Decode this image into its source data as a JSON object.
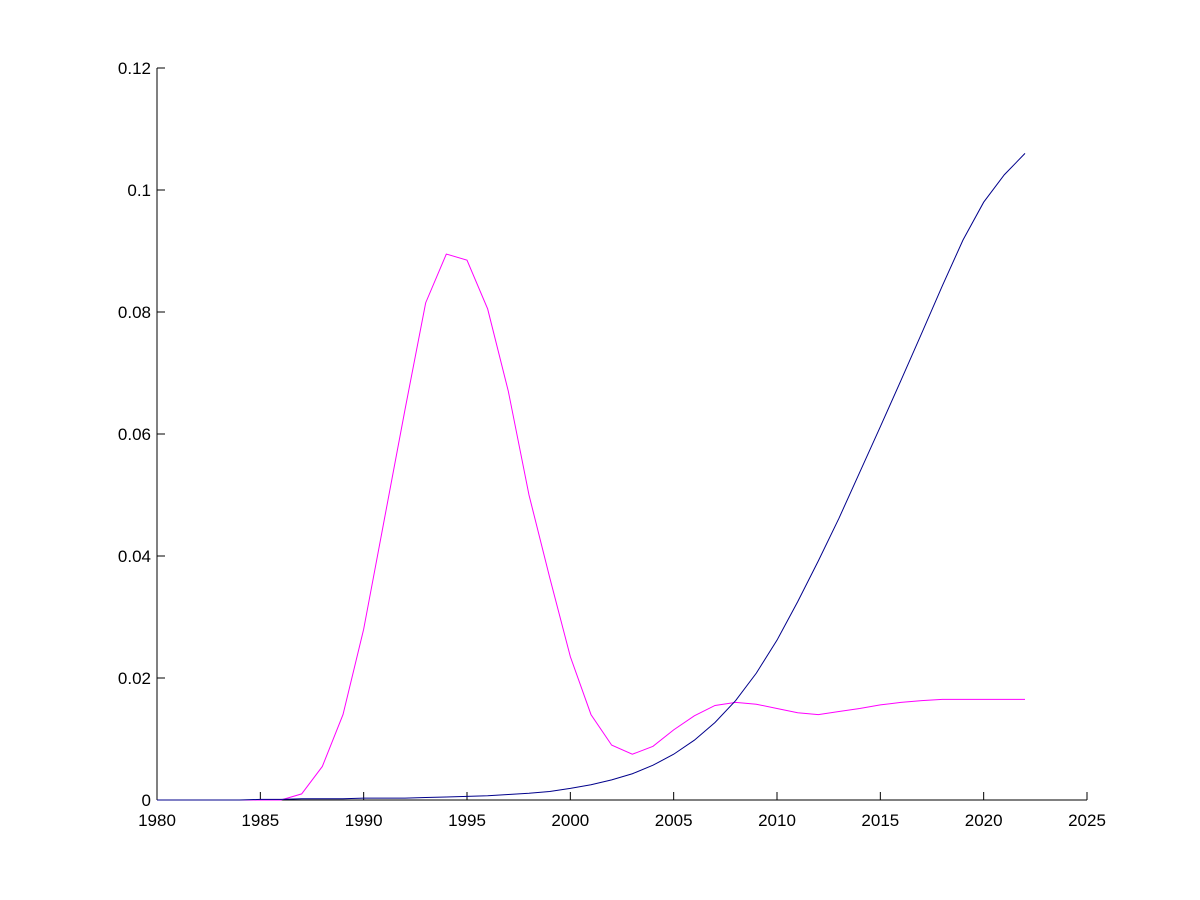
{
  "chart_data": {
    "type": "line",
    "x": [
      1980,
      1981,
      1982,
      1983,
      1984,
      1985,
      1986,
      1987,
      1988,
      1989,
      1990,
      1991,
      1992,
      1993,
      1994,
      1995,
      1996,
      1997,
      1998,
      1999,
      2000,
      2001,
      2002,
      2003,
      2004,
      2005,
      2006,
      2007,
      2008,
      2009,
      2010,
      2011,
      2012,
      2013,
      2014,
      2015,
      2016,
      2017,
      2018,
      2019,
      2020,
      2021,
      2022
    ],
    "series": [
      {
        "color": "#ff00ff",
        "values": [
          0,
          0,
          0,
          0,
          0,
          0,
          0,
          0.001,
          0.0055,
          0.014,
          0.028,
          0.046,
          0.064,
          0.0815,
          0.0895,
          0.0885,
          0.0805,
          0.067,
          0.05,
          0.0365,
          0.0235,
          0.014,
          0.009,
          0.0075,
          0.0088,
          0.0115,
          0.0138,
          0.0155,
          0.016,
          0.0157,
          0.015,
          0.0143,
          0.014,
          0.0145,
          0.015,
          0.0156,
          0.016,
          0.0163,
          0.0165,
          0.0165,
          0.0165,
          0.0165,
          0.0165
        ]
      },
      {
        "color": "#00008b",
        "values": [
          0,
          0,
          0,
          0,
          0,
          0.0001,
          0.0001,
          0.0002,
          0.0002,
          0.0002,
          0.0003,
          0.0003,
          0.0003,
          0.0004,
          0.0005,
          0.0006,
          0.0007,
          0.0009,
          0.0011,
          0.0014,
          0.0019,
          0.0025,
          0.0033,
          0.0043,
          0.0057,
          0.0075,
          0.0098,
          0.0127,
          0.0163,
          0.0208,
          0.0262,
          0.0325,
          0.0392,
          0.0462,
          0.0537,
          0.0612,
          0.0688,
          0.0765,
          0.0843,
          0.0918,
          0.098,
          0.1025,
          0.106
        ]
      }
    ],
    "xlim": [
      1980,
      2025
    ],
    "xticks": [
      1980,
      1985,
      1990,
      1995,
      2000,
      2005,
      2010,
      2015,
      2020,
      2025
    ],
    "ylim": [
      0,
      0.12
    ],
    "yticks": [
      0,
      0.02,
      0.04,
      0.06,
      0.08,
      0.1,
      0.12
    ]
  }
}
